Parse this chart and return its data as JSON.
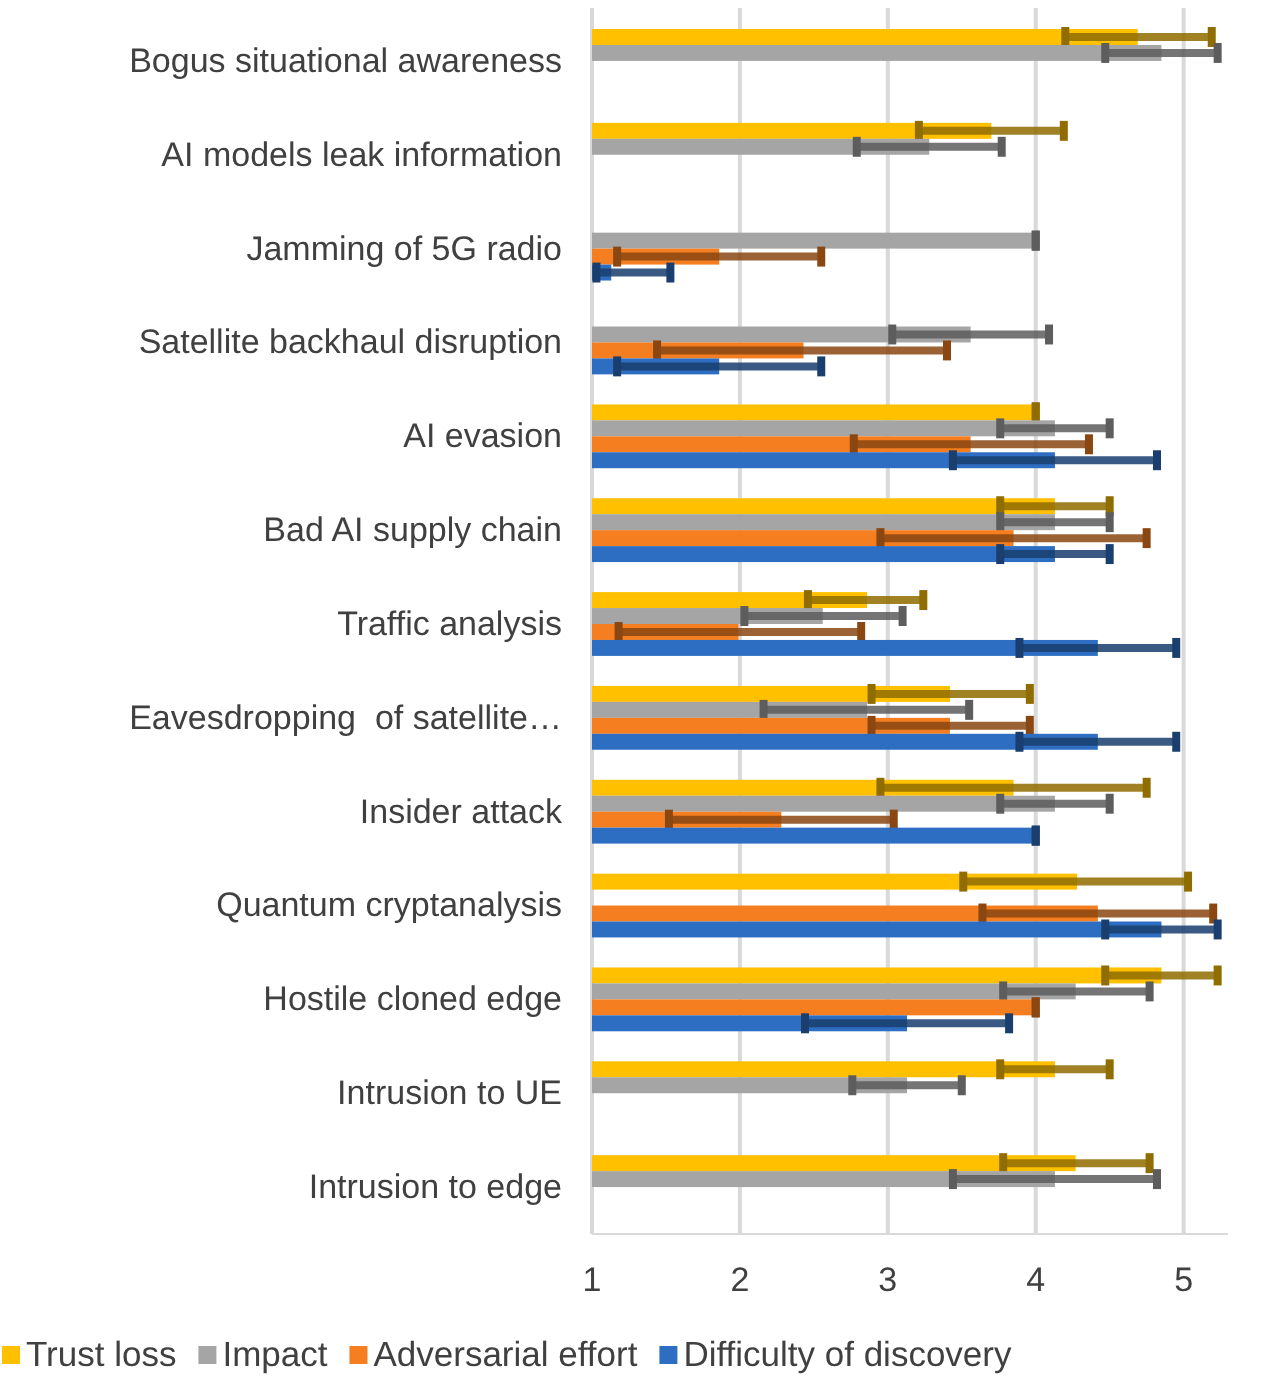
{
  "chart_data": {
    "type": "bar",
    "orientation": "horizontal",
    "categories": [
      "Bogus situational awareness",
      "AI models leak information",
      "Jamming of 5G radio",
      "Satellite backhaul disruption",
      "AI evasion",
      "Bad AI supply chain",
      "Traffic analysis",
      "Eavesdropping  of satellite…",
      "Insider attack",
      "Quantum cryptanalysis",
      "Hostile cloned edge",
      "Intrusion to UE",
      "Intrusion to edge"
    ],
    "series": [
      {
        "name": "Trust loss",
        "color": "#ffc000",
        "values": [
          4.69,
          3.7,
          null,
          null,
          4.0,
          4.13,
          2.86,
          3.42,
          3.85,
          4.28,
          4.85,
          4.13,
          4.27
        ],
        "errors": [
          [
            4.2,
            5.19
          ],
          [
            3.21,
            4.19
          ],
          null,
          null,
          [
            4.0,
            4.0
          ],
          [
            3.76,
            4.5
          ],
          [
            2.46,
            3.24
          ],
          [
            2.89,
            3.96
          ],
          [
            2.95,
            4.75
          ],
          [
            3.51,
            5.03
          ],
          [
            4.47,
            5.23
          ],
          [
            3.76,
            4.5
          ],
          [
            3.78,
            4.77
          ]
        ]
      },
      {
        "name": "Impact",
        "color": "#a5a5a5",
        "values": [
          4.85,
          3.28,
          4.0,
          3.56,
          4.13,
          4.13,
          2.56,
          2.86,
          4.13,
          null,
          4.27,
          3.13,
          4.13
        ],
        "errors": [
          [
            4.47,
            5.23
          ],
          [
            2.79,
            3.77
          ],
          [
            4.0,
            4.0
          ],
          [
            3.03,
            4.09
          ],
          [
            3.76,
            4.5
          ],
          [
            3.76,
            4.5
          ],
          [
            2.03,
            3.1
          ],
          [
            2.16,
            3.55
          ],
          [
            3.76,
            4.5
          ],
          null,
          [
            3.78,
            4.77
          ],
          [
            2.76,
            3.5
          ],
          [
            3.44,
            4.82
          ]
        ]
      },
      {
        "name": "Adversarial effort",
        "color": "#f47e20",
        "values": [
          null,
          null,
          1.86,
          2.43,
          3.56,
          3.85,
          1.99,
          3.42,
          2.28,
          4.42,
          4.0,
          null,
          null
        ],
        "errors": [
          null,
          null,
          [
            1.17,
            2.55
          ],
          [
            1.44,
            3.4
          ],
          [
            2.77,
            4.36
          ],
          [
            2.95,
            4.75
          ],
          [
            1.18,
            2.82
          ],
          [
            2.89,
            3.96
          ],
          [
            1.52,
            3.04
          ],
          [
            3.64,
            5.2
          ],
          [
            4.0,
            4.0
          ],
          null,
          null
        ]
      },
      {
        "name": "Difficulty of discovery",
        "color": "#2e6ec2",
        "values": [
          null,
          null,
          1.13,
          1.86,
          4.13,
          4.13,
          4.42,
          4.42,
          4.0,
          4.85,
          3.13,
          null,
          null
        ],
        "errors": [
          null,
          null,
          [
            1.03,
            1.53
          ],
          [
            1.17,
            2.55
          ],
          [
            3.44,
            4.82
          ],
          [
            3.76,
            4.5
          ],
          [
            3.89,
            4.95
          ],
          [
            3.89,
            4.95
          ],
          [
            4.0,
            4.0
          ],
          [
            4.47,
            5.23
          ],
          [
            2.44,
            3.82
          ],
          null,
          null
        ]
      }
    ],
    "xlim": [
      1,
      5.3
    ],
    "xticks": [
      1,
      2,
      3,
      4,
      5
    ],
    "grid": "x",
    "legend": "bottom"
  }
}
